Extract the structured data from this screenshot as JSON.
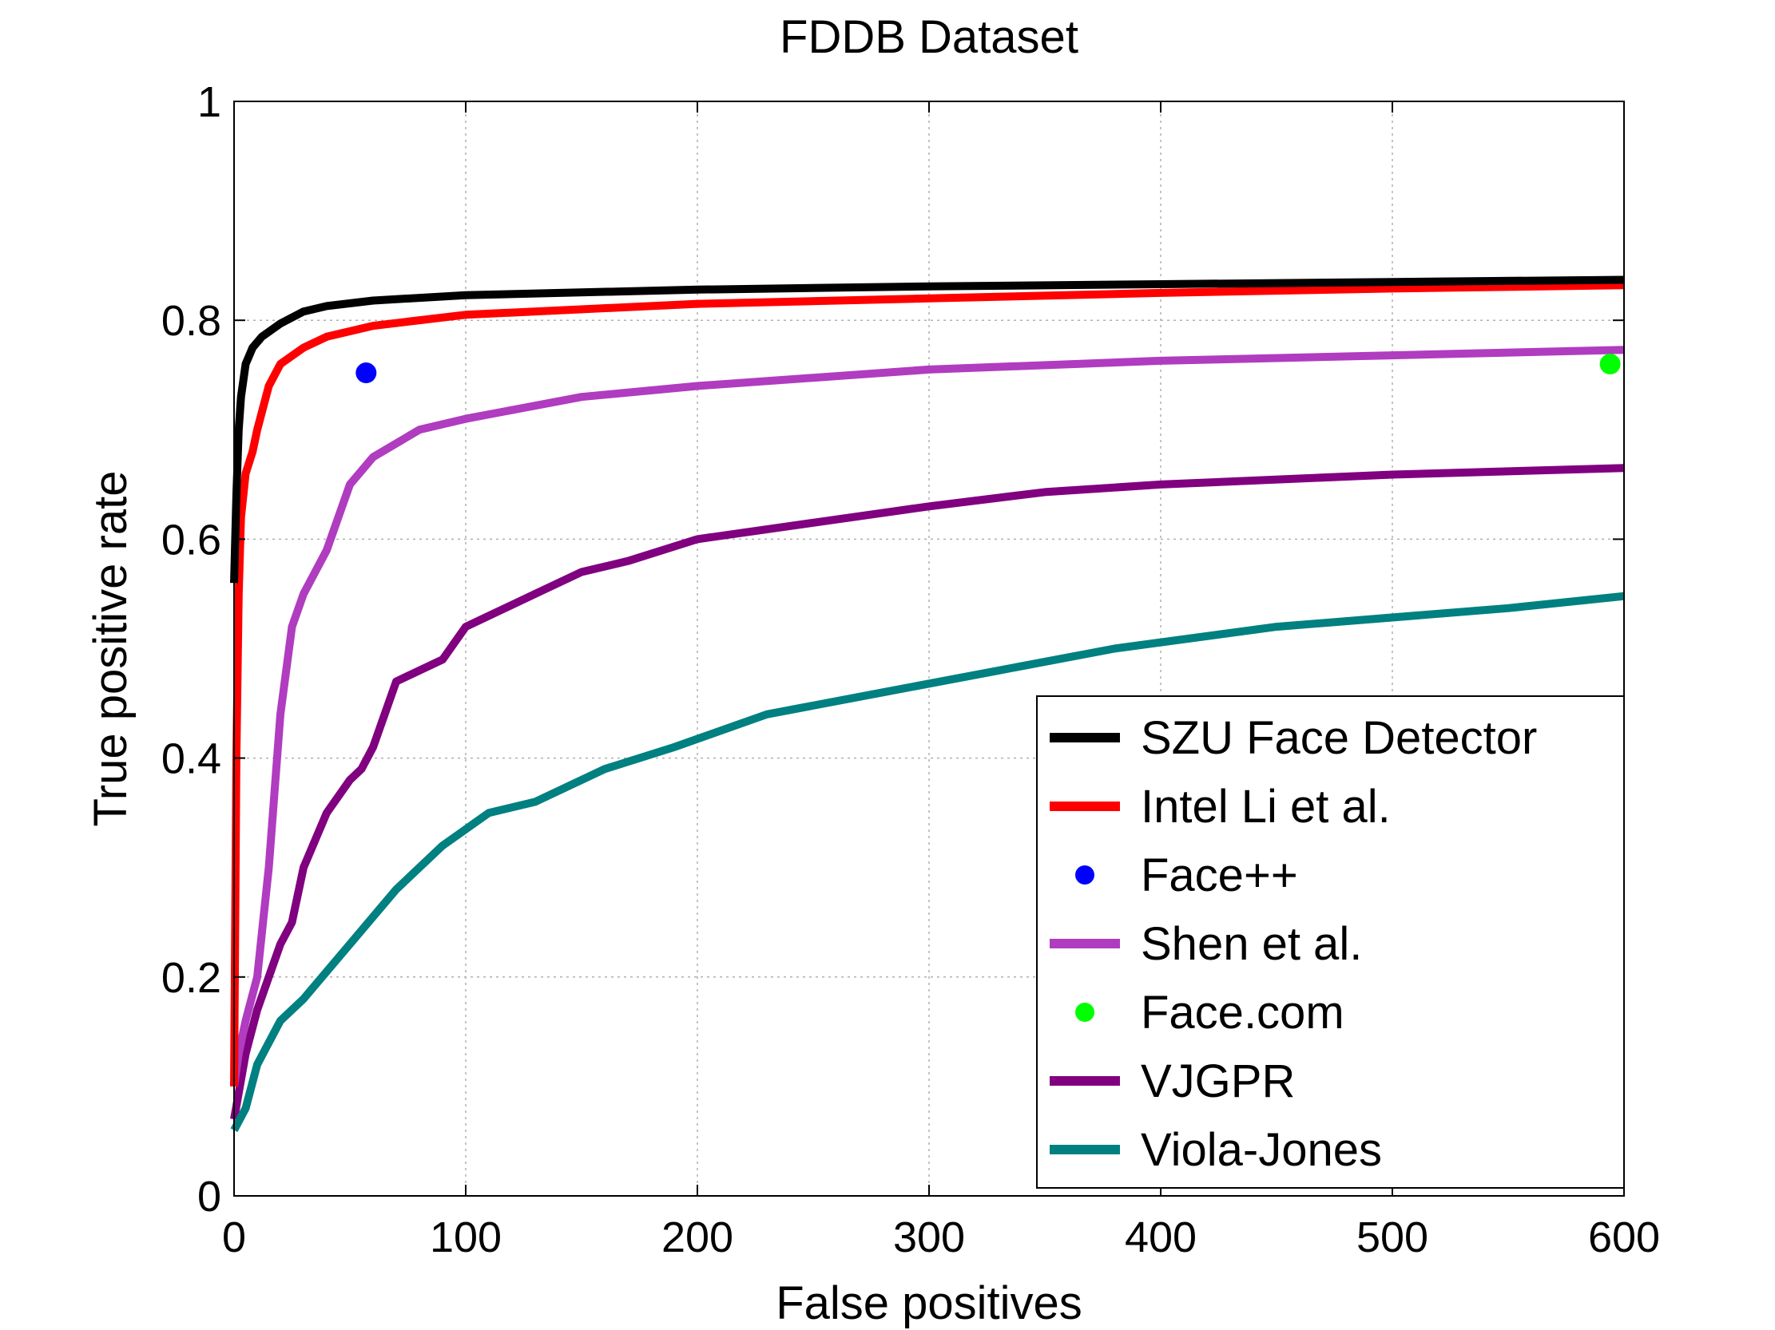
{
  "chart_data": {
    "type": "line",
    "title": "FDDB Dataset",
    "xlabel": "False positives",
    "ylabel": "True positive rate",
    "xlim": [
      0,
      600
    ],
    "ylim": [
      0,
      1
    ],
    "xticks": [
      0,
      100,
      200,
      300,
      400,
      500,
      600
    ],
    "xtick_labels": [
      "0",
      "100",
      "200",
      "300",
      "400",
      "500",
      "600"
    ],
    "yticks": [
      0,
      0.2,
      0.4,
      0.6,
      0.8,
      1
    ],
    "ytick_labels": [
      "0",
      "0.2",
      "0.4",
      "0.6",
      "0.8",
      "1"
    ],
    "grid": true,
    "legend_position": "bottom-right",
    "series": [
      {
        "name": "SZU Face Detector",
        "kind": "line",
        "color": "#000000",
        "x": [
          0,
          1,
          2,
          3,
          5,
          8,
          12,
          20,
          30,
          40,
          60,
          100,
          200,
          300,
          400,
          500,
          600
        ],
        "y": [
          0.56,
          0.64,
          0.7,
          0.73,
          0.76,
          0.775,
          0.785,
          0.797,
          0.808,
          0.813,
          0.818,
          0.823,
          0.828,
          0.831,
          0.833,
          0.835,
          0.837
        ]
      },
      {
        "name": "Intel Li et al.",
        "kind": "line",
        "color": "#ff0000",
        "x": [
          0,
          1,
          2,
          3,
          5,
          8,
          10,
          15,
          20,
          30,
          40,
          60,
          100,
          200,
          300,
          400,
          500,
          600
        ],
        "y": [
          0.1,
          0.4,
          0.55,
          0.62,
          0.66,
          0.68,
          0.7,
          0.74,
          0.76,
          0.775,
          0.785,
          0.795,
          0.805,
          0.815,
          0.82,
          0.825,
          0.829,
          0.832
        ]
      },
      {
        "name": "Face++",
        "kind": "point",
        "color": "#0000ff",
        "x": [
          57
        ],
        "y": [
          0.752
        ]
      },
      {
        "name": "Shen et al.",
        "kind": "line",
        "color": "#b03cc0",
        "x": [
          0,
          2,
          5,
          10,
          15,
          20,
          25,
          30,
          40,
          45,
          50,
          60,
          80,
          100,
          150,
          200,
          300,
          400,
          500,
          600
        ],
        "y": [
          0.1,
          0.13,
          0.16,
          0.2,
          0.3,
          0.44,
          0.52,
          0.55,
          0.59,
          0.62,
          0.65,
          0.675,
          0.7,
          0.71,
          0.73,
          0.74,
          0.755,
          0.763,
          0.768,
          0.773
        ]
      },
      {
        "name": "Face.com",
        "kind": "point",
        "color": "#00ff00",
        "x": [
          594
        ],
        "y": [
          0.76
        ]
      },
      {
        "name": "VJGPR",
        "kind": "line",
        "color": "#800080",
        "x": [
          0,
          5,
          10,
          15,
          20,
          25,
          30,
          40,
          50,
          55,
          60,
          65,
          70,
          90,
          100,
          130,
          150,
          170,
          200,
          250,
          300,
          350,
          400,
          500,
          600
        ],
        "y": [
          0.07,
          0.13,
          0.17,
          0.2,
          0.23,
          0.25,
          0.3,
          0.35,
          0.38,
          0.39,
          0.41,
          0.44,
          0.47,
          0.49,
          0.52,
          0.55,
          0.57,
          0.58,
          0.6,
          0.615,
          0.63,
          0.643,
          0.65,
          0.659,
          0.665
        ]
      },
      {
        "name": "Viola-Jones",
        "kind": "line",
        "color": "#008080",
        "x": [
          0,
          5,
          10,
          20,
          30,
          50,
          70,
          90,
          110,
          130,
          160,
          190,
          230,
          280,
          330,
          380,
          450,
          550,
          600
        ],
        "y": [
          0.06,
          0.08,
          0.12,
          0.16,
          0.18,
          0.23,
          0.28,
          0.32,
          0.35,
          0.36,
          0.39,
          0.41,
          0.44,
          0.46,
          0.48,
          0.5,
          0.52,
          0.537,
          0.548
        ]
      }
    ]
  }
}
